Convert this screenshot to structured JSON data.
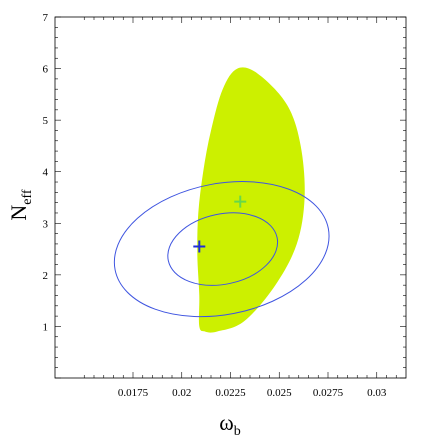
{
  "chart_data": {
    "type": "scatter",
    "title": "",
    "xlabel": "ω",
    "xlabel_sub": "b",
    "ylabel": "N",
    "ylabel_sub": "eff",
    "xlim": [
      0.0135,
      0.0315
    ],
    "ylim": [
      0,
      7
    ],
    "x_ticks": [
      0.0175,
      0.02,
      0.0225,
      0.025,
      0.0275,
      0.03
    ],
    "x_tick_labels": [
      "0.0175",
      "0.02",
      "0.0225",
      "0.025",
      "0.0275",
      "0.03"
    ],
    "y_ticks": [
      1,
      2,
      3,
      4,
      5,
      6,
      7
    ],
    "y_tick_labels": [
      "1",
      "2",
      "3",
      "4",
      "5",
      "6",
      "7"
    ],
    "grid": false,
    "colors": {
      "region_fill": "#ccf000",
      "contour": "#3f55e0",
      "blue_marker": "#1f2ed8",
      "green_marker": "#66d84a"
    },
    "filled_region": {
      "outline": [
        [
          0.0209,
          1.0
        ],
        [
          0.0209,
          1.6
        ],
        [
          0.0208,
          2.4
        ],
        [
          0.02085,
          3.2
        ],
        [
          0.0211,
          4.0
        ],
        [
          0.0215,
          4.8
        ],
        [
          0.0221,
          5.6
        ],
        [
          0.02285,
          6.0
        ],
        [
          0.0239,
          5.9
        ],
        [
          0.0254,
          5.3
        ],
        [
          0.0261,
          4.5
        ],
        [
          0.0263,
          3.5
        ],
        [
          0.0259,
          2.6
        ],
        [
          0.0248,
          1.8
        ],
        [
          0.0232,
          1.1
        ],
        [
          0.0218,
          0.9
        ],
        [
          0.0212,
          0.9
        ]
      ]
    },
    "contours": [
      {
        "level": "inner",
        "center": [
          0.0221,
          2.5
        ],
        "semi_axis_x": 0.00285,
        "semi_axis_y": 0.68,
        "rotation_deg": 12
      },
      {
        "level": "outer",
        "center": [
          0.02205,
          2.5
        ],
        "semi_axis_x": 0.00557,
        "semi_axis_y": 1.27,
        "rotation_deg": 11
      }
    ],
    "markers": [
      {
        "x": 0.0209,
        "y": 2.55,
        "color": "#1f2ed8",
        "symbol": "+"
      },
      {
        "x": 0.023,
        "y": 3.42,
        "color": "#66d84a",
        "symbol": "+"
      }
    ]
  }
}
